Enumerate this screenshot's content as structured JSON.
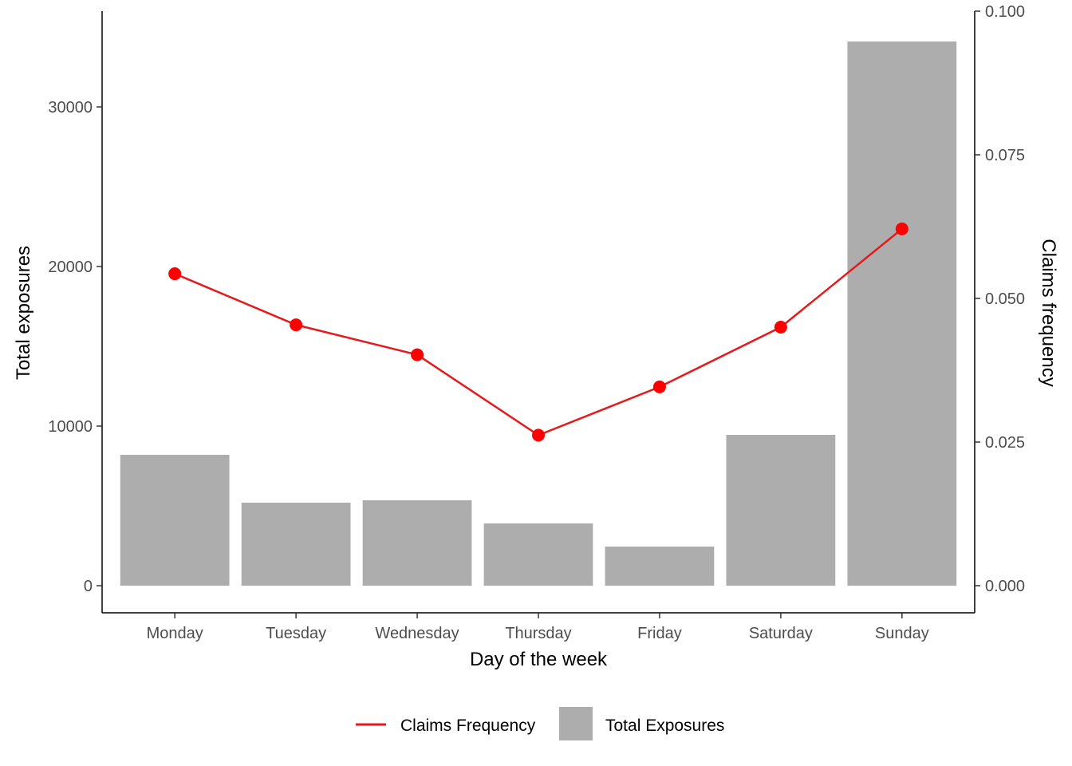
{
  "chart_data": {
    "type": "bar",
    "categories": [
      "Monday",
      "Tuesday",
      "Wednesday",
      "Thursday",
      "Friday",
      "Saturday",
      "Sunday"
    ],
    "xlabel": "Day of the week",
    "ylabel": "Total exposures",
    "y2label": "Claims frequency",
    "ylim": [
      -1700,
      36000
    ],
    "y2lim": [
      -0.00472,
      0.1
    ],
    "yticks": [
      0,
      10000,
      20000,
      30000
    ],
    "yticklabels": [
      "0",
      "10000",
      "20000",
      "30000"
    ],
    "y2ticks": [
      0,
      0.025,
      0.05,
      0.075,
      0.1
    ],
    "y2ticklabels": [
      "0.000",
      "0.025",
      "0.050",
      "0.075",
      "0.100"
    ],
    "grid": false,
    "legend_position": "bottom",
    "series": [
      {
        "name": "Total Exposures",
        "kind": "bar",
        "axis": "left",
        "color": "#adadad",
        "values": [
          8200,
          5200,
          5350,
          3900,
          2450,
          9450,
          34100
        ]
      },
      {
        "name": "Claims Frequency",
        "kind": "line",
        "axis": "right",
        "color": "#e41a1c",
        "point_color": "#ff0000",
        "values": [
          0.0543,
          0.0454,
          0.0402,
          0.0262,
          0.0346,
          0.045,
          0.0621
        ]
      }
    ],
    "legend": [
      {
        "label": "Claims Frequency",
        "kind": "line",
        "color": "#e41a1c"
      },
      {
        "label": "Total Exposures",
        "kind": "bar",
        "color": "#adadad"
      }
    ]
  }
}
